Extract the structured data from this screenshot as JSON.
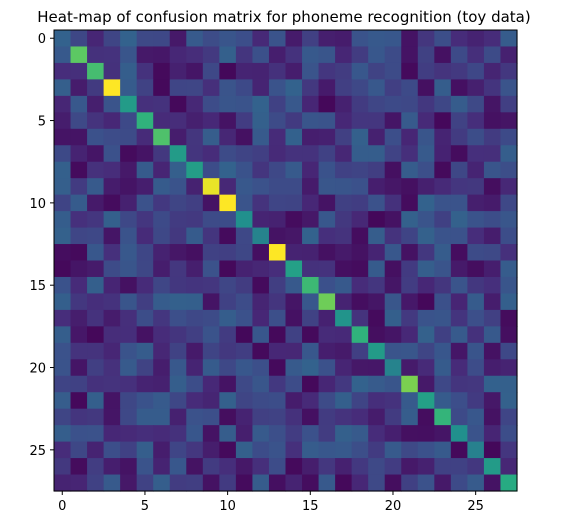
{
  "chart_data": {
    "type": "heatmap",
    "title": "Heat-map of confusion matrix for phoneme recognition (toy data)",
    "xlabel": "",
    "ylabel": "",
    "n_rows": 28,
    "n_cols": 28,
    "x_ticks": [
      0,
      5,
      10,
      15,
      20,
      25
    ],
    "y_ticks": [
      0,
      5,
      10,
      15,
      20,
      25
    ],
    "xlim": [
      -0.5,
      27.5
    ],
    "ylim": [
      27.5,
      -0.5
    ],
    "colormap": "viridis",
    "value_range": [
      0,
      1
    ],
    "grid": false,
    "legend": "none",
    "diagonal": [
      0.32,
      0.75,
      0.7,
      1.0,
      0.55,
      0.65,
      0.72,
      0.55,
      0.56,
      0.97,
      1.0,
      0.5,
      0.45,
      1.0,
      0.57,
      0.68,
      0.78,
      0.52,
      0.65,
      0.55,
      0.45,
      0.8,
      0.57,
      0.66,
      0.5,
      0.44,
      0.55,
      0.62
    ],
    "off_diagonal_range": [
      0.02,
      0.32
    ]
  }
}
